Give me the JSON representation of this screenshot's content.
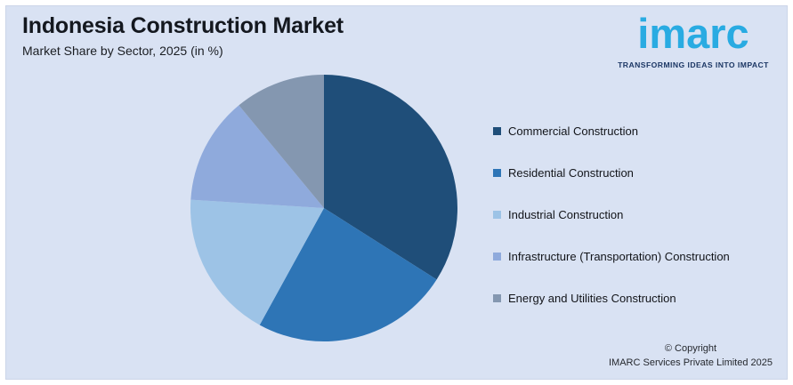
{
  "header": {
    "title": "Indonesia Construction Market",
    "subtitle": "Market Share by Sector, 2025 (in %)"
  },
  "logo": {
    "wordmark": "imarc",
    "tagline": "TRANSFORMING IDEAS INTO IMPACT",
    "brand_color": "#29ABE2",
    "tagline_color": "#1B3664"
  },
  "footer": {
    "copyright_line1": "© Copyright",
    "copyright_line2": "IMARC Services Private Limited 2025"
  },
  "chart_data": {
    "type": "pie",
    "title": "Indonesia Construction Market",
    "subtitle": "Market Share by Sector, 2025 (in %)",
    "unit": "%",
    "start_angle_deg": 0,
    "direction": "clockwise",
    "legend_position": "right",
    "background_color": "#D9E2F3",
    "labels": [
      "Commercial Construction",
      "Residential Construction",
      "Industrial Construction",
      "Infrastructure (Transportation) Construction",
      "Energy and Utilities Construction"
    ],
    "values": [
      34,
      24,
      18,
      13,
      11
    ],
    "colors": [
      "#1F4E79",
      "#2E75B6",
      "#9DC3E6",
      "#8FAADC",
      "#8497B0"
    ]
  }
}
